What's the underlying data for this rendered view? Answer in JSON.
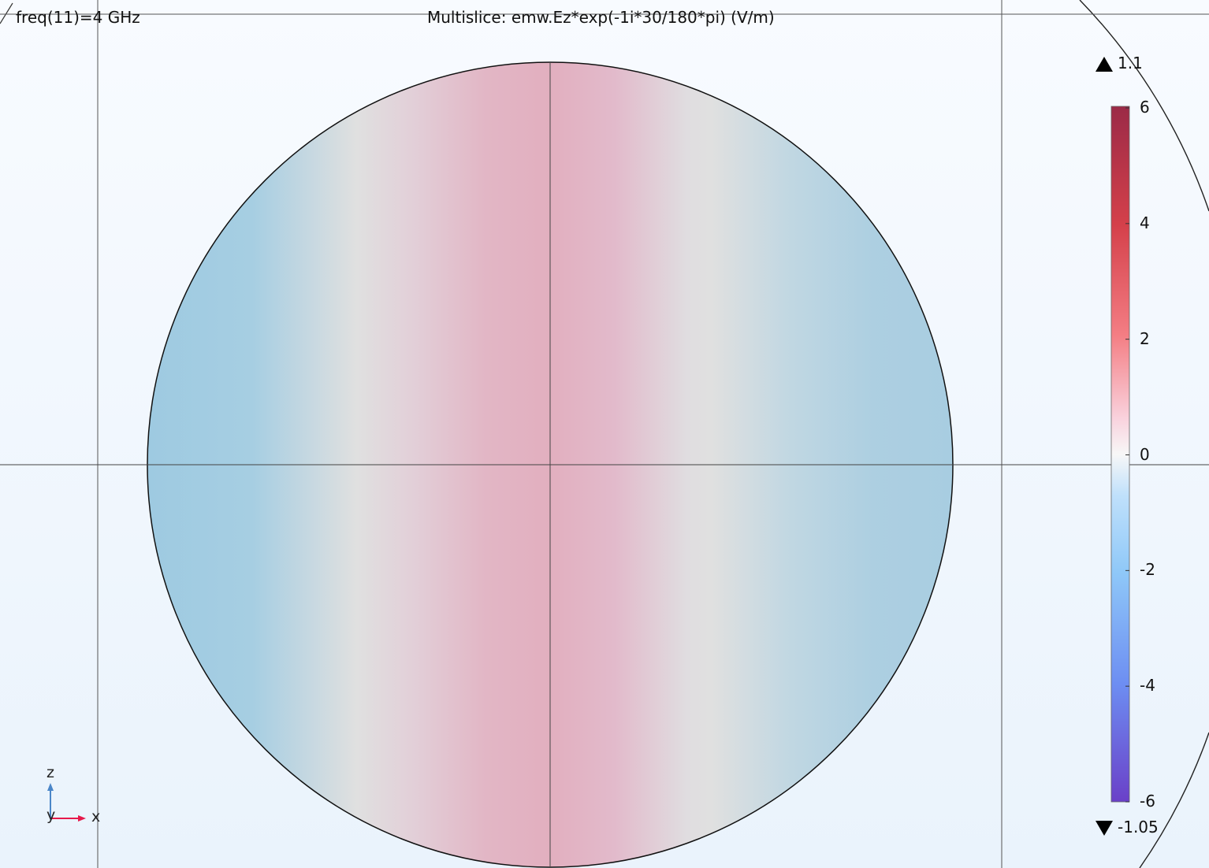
{
  "header": {
    "parameter_label": "freq(11)=4 GHz",
    "plot_title": "Multislice: emw.Ez*exp(-1i*30/180*pi) (V/m)"
  },
  "color_legend": {
    "max_marker": "1.1",
    "min_marker": "-1.05",
    "ticks": [
      "6",
      "4",
      "2",
      "0",
      "-2",
      "-4",
      "-6"
    ],
    "range": [
      -6,
      6
    ],
    "colors": {
      "top": "#9b2a47",
      "upper": "#d4404a",
      "mid_upper": "#f47e84",
      "zero": "#f7f7f7",
      "mid_lower": "#8fc8f8",
      "lower": "#6d8ef2",
      "bottom": "#6a40c8"
    }
  },
  "field_colors": {
    "positive": "#e2afbf",
    "neutral": "#e0e0e0",
    "negative": "#9ecae1"
  },
  "axis_triad": {
    "vertical": "z",
    "out_of_plane": "y",
    "horizontal": "x",
    "vertical_color": "#4a86c8",
    "horizontal_color": "#e6194b"
  }
}
